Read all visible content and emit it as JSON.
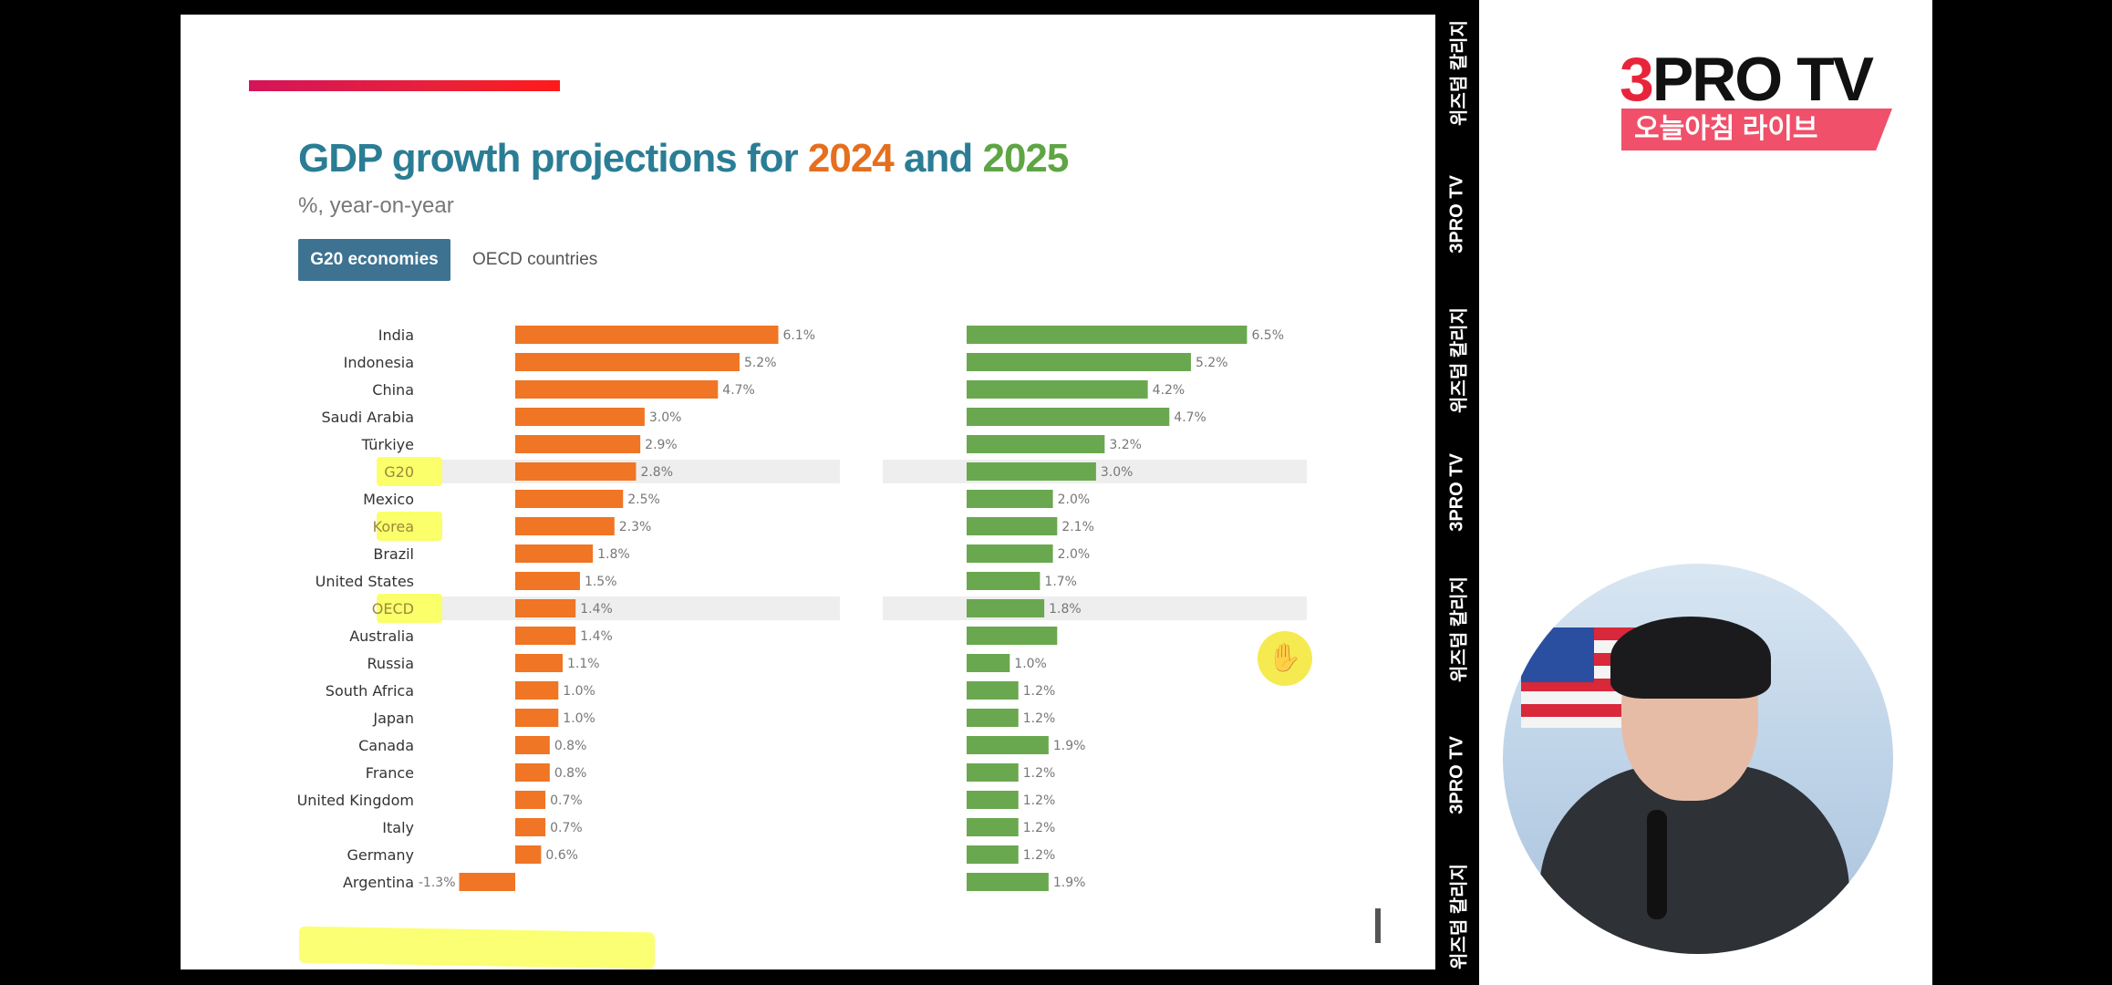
{
  "slide": {
    "title_prefix": "GDP growth projections for ",
    "title_year1": "2024",
    "title_and": " and ",
    "title_year2": "2025",
    "subtitle": "%, year-on-year",
    "tabs": [
      {
        "label": "G20 economies",
        "active": true
      },
      {
        "label": "OECD countries",
        "active": false
      }
    ]
  },
  "chart_data": {
    "type": "bar",
    "title": "GDP growth projections for 2024 and 2025",
    "subtitle": "%, year-on-year",
    "categories": [
      "India",
      "Indonesia",
      "China",
      "Saudi Arabia",
      "Türkiye",
      "G20",
      "Mexico",
      "Korea",
      "Brazil",
      "United States",
      "OECD",
      "Australia",
      "Russia",
      "South Africa",
      "Japan",
      "Canada",
      "France",
      "United Kingdom",
      "Italy",
      "Germany",
      "Argentina"
    ],
    "series": [
      {
        "name": "2024",
        "color": "#f07524",
        "values": [
          6.1,
          5.2,
          4.7,
          3.0,
          2.9,
          2.8,
          2.5,
          2.3,
          1.8,
          1.5,
          1.4,
          1.4,
          1.1,
          1.0,
          1.0,
          0.8,
          0.8,
          0.7,
          0.7,
          0.6,
          -1.3
        ],
        "labels": [
          "6.1%",
          "5.2%",
          "4.7%",
          "3.0%",
          "2.9%",
          "2.8%",
          "2.5%",
          "2.3%",
          "1.8%",
          "1.5%",
          "1.4%",
          "1.4%",
          "1.1%",
          "1.0%",
          "1.0%",
          "0.8%",
          "0.8%",
          "0.7%",
          "0.7%",
          "0.6%",
          "-1.3%"
        ]
      },
      {
        "name": "2025",
        "color": "#6aa84f",
        "values": [
          6.5,
          5.2,
          4.2,
          4.7,
          3.2,
          3.0,
          2.0,
          2.1,
          2.0,
          1.7,
          1.8,
          2.1,
          1.0,
          1.2,
          1.2,
          1.9,
          1.2,
          1.2,
          1.2,
          1.2,
          1.9
        ],
        "labels": [
          "6.5%",
          "5.2%",
          "4.2%",
          "4.7%",
          "3.2%",
          "3.0%",
          "2.0%",
          "2.1%",
          "2.0%",
          "1.7%",
          "1.8%",
          "",
          "1.0%",
          "1.2%",
          "1.2%",
          "1.9%",
          "1.2%",
          "1.2%",
          "1.2%",
          "1.2%",
          "1.9%"
        ]
      }
    ],
    "highlighted_rows": [
      "G20",
      "OECD"
    ],
    "marked_rows": [
      "G20",
      "Korea",
      "OECD"
    ]
  },
  "side_strip": {
    "items": [
      "위즈덤 칼리지",
      "3PRO TV",
      "위즈덤 칼리지",
      "3PRO TV",
      "위즈덤 칼리지",
      "3PRO TV",
      "위즈덤 칼리지"
    ]
  },
  "broadcast": {
    "logo_three": "3",
    "logo_rest": "PRO TV",
    "live_label": "오늘아침 라이브"
  },
  "colors": {
    "series_2024": "#f07524",
    "series_2025": "#6aa84f",
    "title": "#2a7d94",
    "tab_active": "#3d7291",
    "highlight": "#faff5a"
  }
}
